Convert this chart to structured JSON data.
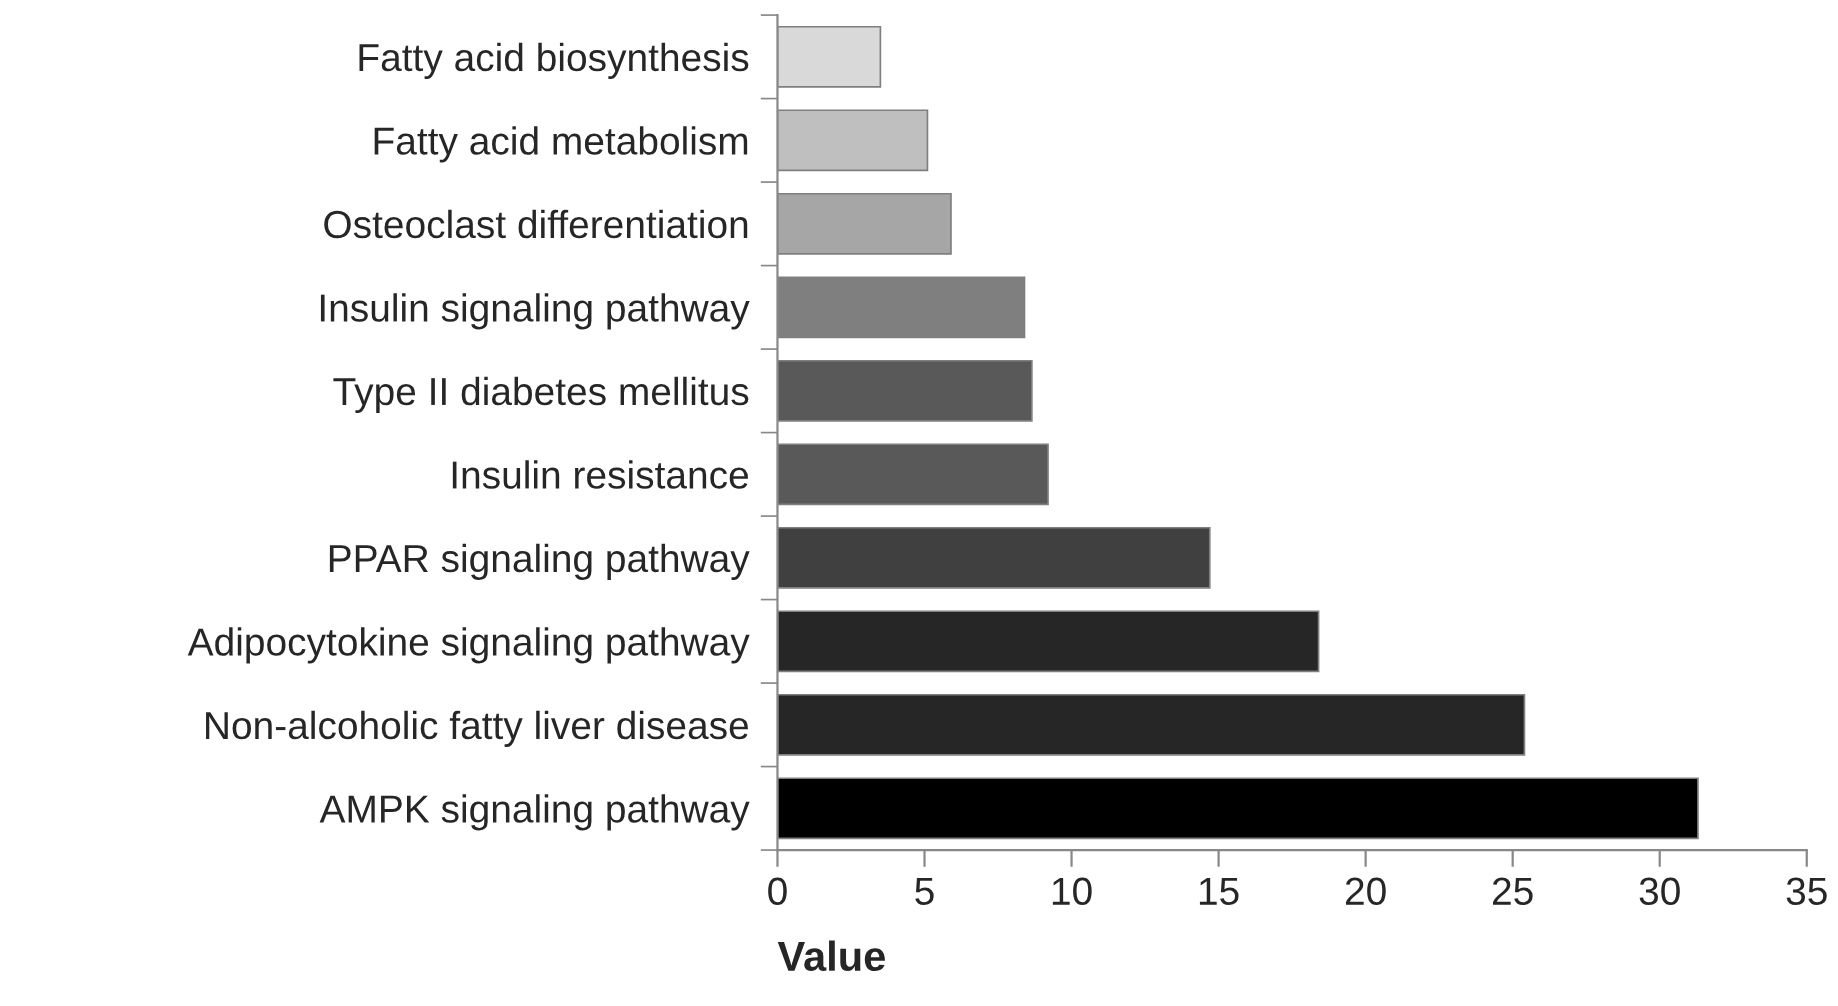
{
  "chart_data": {
    "type": "bar",
    "orientation": "horizontal",
    "xlabel": "Value",
    "categories": [
      "Fatty acid biosynthesis",
      "Fatty acid metabolism",
      "Osteoclast differentiation",
      "Insulin signaling pathway",
      "Type II diabetes mellitus",
      "Insulin resistance",
      "PPAR signaling pathway",
      "Adipocytokine signaling pathway",
      "Non-alcoholic fatty liver disease",
      "AMPK signaling pathway"
    ],
    "values": [
      3.5,
      5.1,
      5.9,
      8.4,
      8.65,
      9.2,
      14.7,
      18.4,
      25.4,
      31.3
    ],
    "colors": [
      "#d9d9d9",
      "#bfbfbf",
      "#a6a6a6",
      "#7f7f7f",
      "#595959",
      "#595959",
      "#404040",
      "#262626",
      "#262626",
      "#000000"
    ],
    "xlim": [
      0,
      35
    ],
    "xticks": [
      0,
      5,
      10,
      15,
      20,
      25,
      30,
      35
    ],
    "grid": false,
    "legend": false
  }
}
